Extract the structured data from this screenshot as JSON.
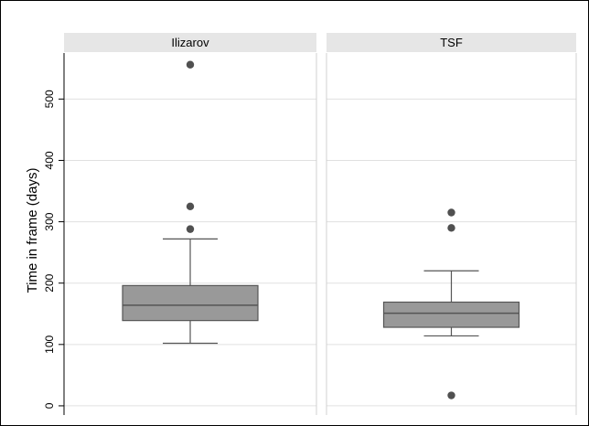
{
  "chart_data": {
    "type": "boxplot",
    "ylabel": "Time in frame (days)",
    "yticks": [
      0,
      100,
      200,
      300,
      400,
      500
    ],
    "ylim": [
      -15,
      575
    ],
    "grid": true,
    "panels": [
      {
        "name": "Ilizarov",
        "whisker_low": 102,
        "q1": 139,
        "median": 164,
        "q3": 196,
        "whisker_high": 272,
        "outliers": [
          288,
          325,
          556
        ]
      },
      {
        "name": "TSF",
        "whisker_low": 114,
        "q1": 128,
        "median": 151,
        "q3": 169,
        "whisker_high": 220,
        "outliers": [
          17,
          290,
          315
        ]
      }
    ],
    "colors": {
      "box": "#999999",
      "median": "#555555",
      "outlier": "#505050",
      "strip": "#e6e6e6",
      "grid": "#e0e0e0",
      "panel_border": "#d0d0d0"
    }
  }
}
